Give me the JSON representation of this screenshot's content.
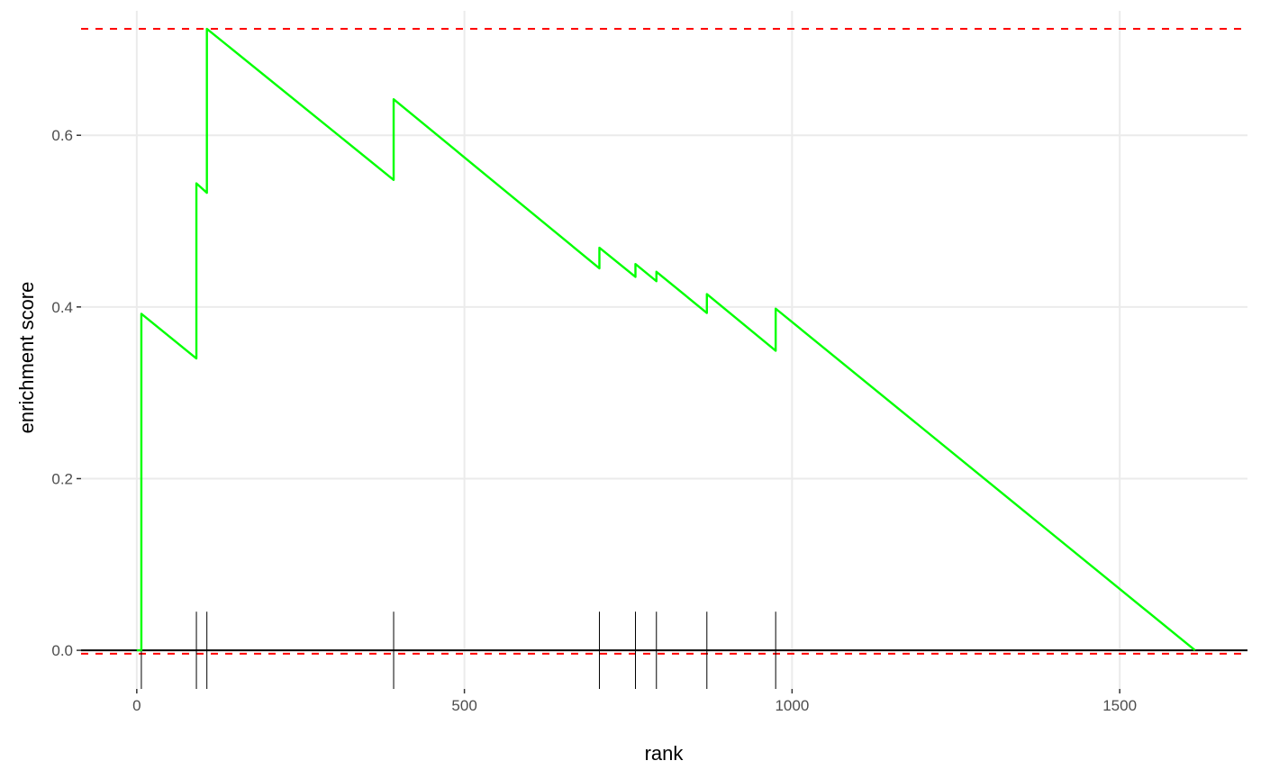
{
  "chart_data": {
    "type": "line",
    "title": "",
    "xlabel": "rank",
    "ylabel": "enrichment score",
    "xlim": [
      -85,
      1695
    ],
    "ylim": [
      -0.045,
      0.745
    ],
    "x_ticks": [
      0,
      500,
      1000,
      1500
    ],
    "x_tick_labels": [
      "0",
      "500",
      "1000",
      "1500"
    ],
    "y_ticks": [
      0.0,
      0.2,
      0.4,
      0.6
    ],
    "y_tick_labels": [
      "0.0",
      "0.2",
      "0.4",
      "0.6"
    ],
    "grid": true,
    "legend": "none",
    "series": [
      {
        "color": "#00ff00",
        "points": [
          [
            0,
            0.0
          ],
          [
            7,
            0.0
          ],
          [
            7,
            0.392
          ],
          [
            91,
            0.34
          ],
          [
            91,
            0.544
          ],
          [
            107,
            0.533
          ],
          [
            107,
            0.724
          ],
          [
            392,
            0.548
          ],
          [
            392,
            0.642
          ],
          [
            706,
            0.445
          ],
          [
            706,
            0.469
          ],
          [
            761,
            0.435
          ],
          [
            761,
            0.45
          ],
          [
            793,
            0.43
          ],
          [
            793,
            0.441
          ],
          [
            870,
            0.393
          ],
          [
            870,
            0.415
          ],
          [
            975,
            0.349
          ],
          [
            975,
            0.398
          ],
          [
            1615,
            0.0
          ]
        ]
      }
    ],
    "hit_ranks": [
      7,
      91,
      107,
      392,
      706,
      761,
      793,
      870,
      975
    ],
    "reference_lines": {
      "zero": {
        "value": 0.0,
        "color": "#000000"
      },
      "max_es": {
        "value": 0.724,
        "color": "#ff0000",
        "style": "dashed"
      },
      "min_es": {
        "value": -0.004,
        "color": "#ff0000",
        "style": "dashed"
      }
    }
  }
}
